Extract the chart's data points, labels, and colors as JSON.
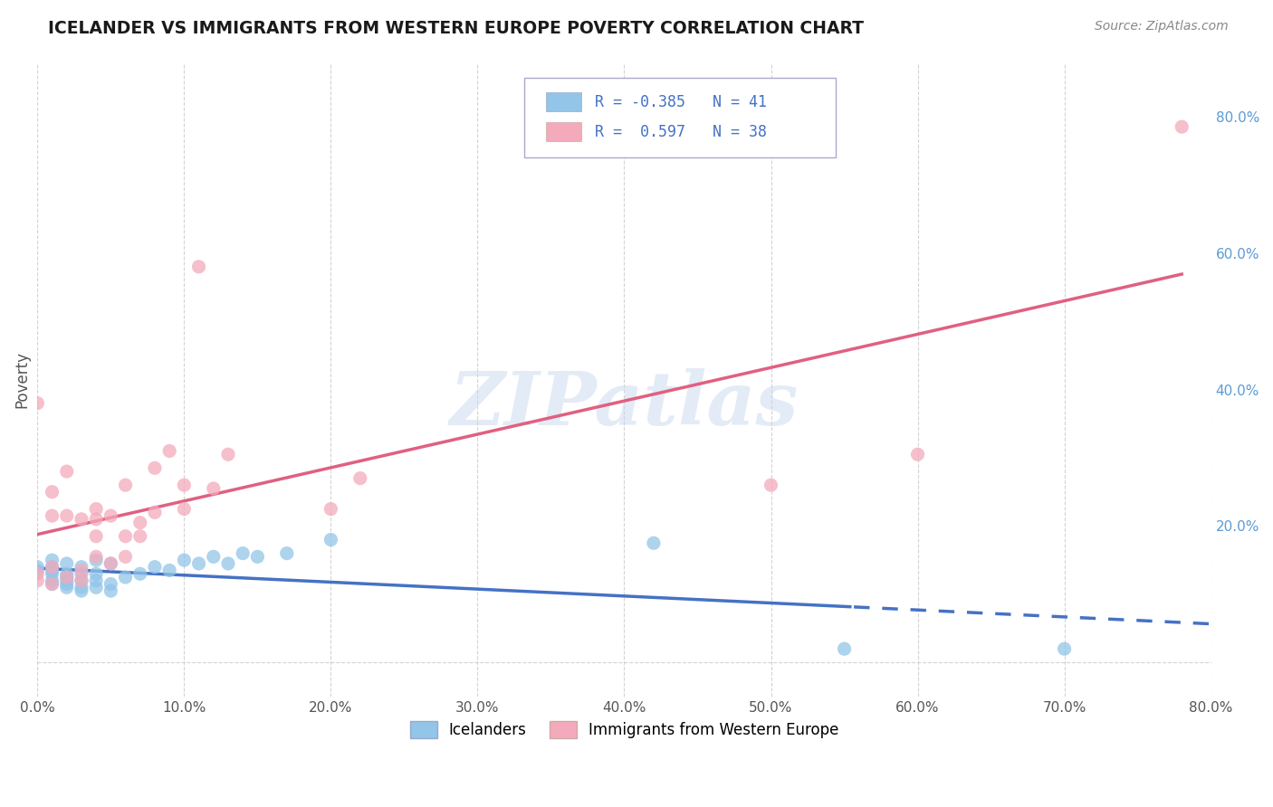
{
  "title": "ICELANDER VS IMMIGRANTS FROM WESTERN EUROPE POVERTY CORRELATION CHART",
  "source": "Source: ZipAtlas.com",
  "ylabel": "Poverty",
  "watermark": "ZIPatlas",
  "color_blue": "#92C5E8",
  "color_pink": "#F4AABB",
  "color_blue_line": "#4472C4",
  "color_pink_line": "#E06080",
  "color_blue_text": "#4472C4",
  "color_right_labels": "#5B9BD5",
  "background": "#FFFFFF",
  "grid_color": "#C8C8C8",
  "xlim": [
    0.0,
    0.8
  ],
  "ylim": [
    -0.05,
    0.88
  ],
  "icelanders_x": [
    0.0,
    0.0,
    0.01,
    0.01,
    0.01,
    0.01,
    0.01,
    0.01,
    0.02,
    0.02,
    0.02,
    0.02,
    0.02,
    0.02,
    0.03,
    0.03,
    0.03,
    0.03,
    0.03,
    0.04,
    0.04,
    0.04,
    0.04,
    0.05,
    0.05,
    0.05,
    0.06,
    0.07,
    0.08,
    0.09,
    0.1,
    0.11,
    0.12,
    0.13,
    0.14,
    0.15,
    0.17,
    0.2,
    0.42,
    0.55,
    0.7
  ],
  "icelanders_y": [
    0.135,
    0.14,
    0.115,
    0.12,
    0.13,
    0.135,
    0.14,
    0.15,
    0.11,
    0.115,
    0.12,
    0.125,
    0.13,
    0.145,
    0.105,
    0.11,
    0.12,
    0.13,
    0.14,
    0.11,
    0.12,
    0.13,
    0.15,
    0.105,
    0.115,
    0.145,
    0.125,
    0.13,
    0.14,
    0.135,
    0.15,
    0.145,
    0.155,
    0.145,
    0.16,
    0.155,
    0.16,
    0.18,
    0.175,
    0.02,
    0.02
  ],
  "immigrants_x": [
    0.0,
    0.0,
    0.0,
    0.01,
    0.01,
    0.01,
    0.01,
    0.02,
    0.02,
    0.02,
    0.03,
    0.03,
    0.03,
    0.04,
    0.04,
    0.04,
    0.04,
    0.05,
    0.05,
    0.06,
    0.06,
    0.06,
    0.07,
    0.07,
    0.08,
    0.08,
    0.09,
    0.1,
    0.1,
    0.11,
    0.12,
    0.13,
    0.2,
    0.22,
    0.5,
    0.6,
    0.78
  ],
  "immigrants_y": [
    0.12,
    0.13,
    0.38,
    0.115,
    0.14,
    0.215,
    0.25,
    0.125,
    0.215,
    0.28,
    0.12,
    0.135,
    0.21,
    0.155,
    0.185,
    0.21,
    0.225,
    0.145,
    0.215,
    0.155,
    0.185,
    0.26,
    0.185,
    0.205,
    0.22,
    0.285,
    0.31,
    0.225,
    0.26,
    0.58,
    0.255,
    0.305,
    0.225,
    0.27,
    0.26,
    0.305,
    0.785
  ],
  "xtick_positions": [
    0.0,
    0.1,
    0.2,
    0.3,
    0.4,
    0.5,
    0.6,
    0.7,
    0.8
  ],
  "xtick_labels": [
    "0.0%",
    "10.0%",
    "20.0%",
    "30.0%",
    "40.0%",
    "50.0%",
    "60.0%",
    "70.0%",
    "80.0%"
  ],
  "ytick_positions_left": [
    0.0
  ],
  "ytick_labels_left": [
    ""
  ],
  "ytick_positions_right": [
    0.0,
    0.2,
    0.4,
    0.6,
    0.8
  ],
  "ytick_labels_right": [
    "",
    "20.0%",
    "40.0%",
    "60.0%",
    "80.0%"
  ],
  "blue_dash_cutoff": 0.555,
  "pink_line_xend": 0.78,
  "blue_line_xend": 0.8
}
